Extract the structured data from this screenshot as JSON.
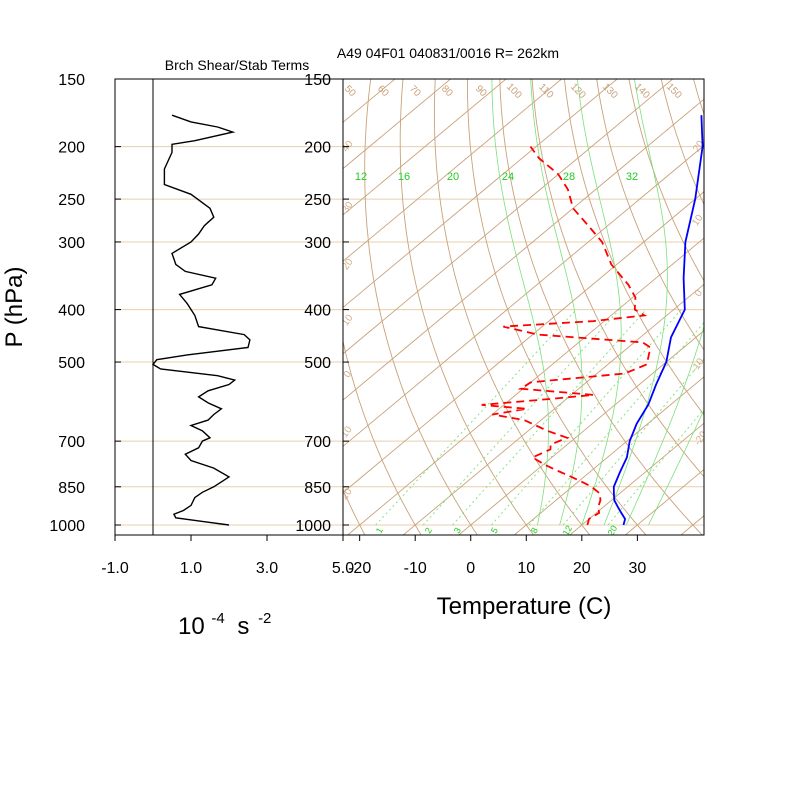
{
  "chart_data": [
    {
      "type": "line",
      "title": "Brch Shear/Stab Terms",
      "ylabel": "P (hPa)",
      "xlabel_base": "10",
      "xlabel_exp": "-4",
      "xlabel_unit": "s",
      "xlabel_unit_exp": "-2",
      "y_scale": "log-pressure",
      "ylim": [
        1000,
        150
      ],
      "xlim": [
        -1.0,
        5.0
      ],
      "x_ticks": [
        "-1.0",
        "1.0",
        "3.0",
        "5.0"
      ],
      "y_ticks": [
        "150",
        "200",
        "250",
        "300",
        "400",
        "500",
        "700",
        "850",
        "1000"
      ],
      "reference_line_x": 0,
      "line_color": "#000000",
      "series": [
        {
          "values": [
            [
              2.0,
              1000
            ],
            [
              1.3,
              985
            ],
            [
              0.6,
              970
            ],
            [
              0.55,
              955
            ],
            [
              0.8,
              940
            ],
            [
              1.0,
              920
            ],
            [
              1.1,
              890
            ],
            [
              1.3,
              870
            ],
            [
              1.6,
              850
            ],
            [
              2.0,
              815
            ],
            [
              1.6,
              785
            ],
            [
              1.0,
              760
            ],
            [
              0.85,
              740
            ],
            [
              1.2,
              720
            ],
            [
              1.3,
              700
            ],
            [
              1.5,
              690
            ],
            [
              1.3,
              670
            ],
            [
              1.0,
              655
            ],
            [
              1.45,
              640
            ],
            [
              1.6,
              625
            ],
            [
              1.8,
              610
            ],
            [
              1.45,
              595
            ],
            [
              1.2,
              580
            ],
            [
              1.45,
              565
            ],
            [
              2.0,
              550
            ],
            [
              2.15,
              540
            ],
            [
              1.7,
              530
            ],
            [
              0.2,
              515
            ],
            [
              0.0,
              505
            ],
            [
              0.1,
              495
            ],
            [
              0.9,
              485
            ],
            [
              2.5,
              470
            ],
            [
              2.55,
              455
            ],
            [
              2.4,
              445
            ],
            [
              1.2,
              430
            ],
            [
              1.1,
              410
            ],
            [
              0.9,
              390
            ],
            [
              0.7,
              375
            ],
            [
              1.55,
              360
            ],
            [
              1.65,
              350
            ],
            [
              0.85,
              340
            ],
            [
              0.6,
              330
            ],
            [
              0.5,
              315
            ],
            [
              1.0,
              300
            ],
            [
              1.2,
              290
            ],
            [
              1.35,
              280
            ],
            [
              1.6,
              270
            ],
            [
              1.5,
              260
            ],
            [
              1.0,
              245
            ],
            [
              0.3,
              235
            ],
            [
              0.3,
              220
            ],
            [
              0.5,
              205
            ],
            [
              0.5,
              198
            ],
            [
              1.1,
              195
            ],
            [
              2.1,
              188
            ],
            [
              1.7,
              184
            ],
            [
              1.0,
              180
            ],
            [
              0.5,
              175
            ]
          ]
        }
      ]
    },
    {
      "type": "line",
      "title": "A49 04F01 040831/0016 R= 262km",
      "xlabel": "Temperature (C)",
      "y_scale": "log-pressure",
      "ylim": [
        1000,
        150
      ],
      "xlim": [
        -23,
        42
      ],
      "skew": true,
      "x_ticks": [
        "-20",
        "-10",
        "0",
        "10",
        "20",
        "30"
      ],
      "y_ticks": [
        "150",
        "200",
        "250",
        "300",
        "400",
        "500",
        "700",
        "850",
        "1000"
      ],
      "isotherm_labels": [
        "-20",
        "-10",
        "0",
        "10",
        "20",
        "30",
        "40"
      ],
      "mixing_ratio_labels": [
        "1",
        "2",
        "3",
        "5",
        "8",
        "12",
        "20"
      ],
      "theta_e_labels": [
        "12",
        "16",
        "20",
        "24",
        "28",
        "32"
      ],
      "dry_adiabat_labels": [
        "50",
        "60",
        "70",
        "80",
        "90",
        "100",
        "110",
        "120",
        "130",
        "140",
        "150"
      ],
      "colors": {
        "background_lines": "#c9a27a",
        "isobars": "#e8cfae",
        "moist_lines": "#7be07b",
        "labels_green": "#22cc22",
        "temperature": "#0000ff",
        "dewpoint": "#ff0000"
      },
      "series": [
        {
          "name": "Temperature",
          "values": [
            [
              27.5,
              1000
            ],
            [
              26.5,
              975
            ],
            [
              24.5,
              950
            ],
            [
              22.5,
              925
            ],
            [
              20.5,
              900
            ],
            [
              19.0,
              875
            ],
            [
              17.5,
              850
            ],
            [
              15.5,
              800
            ],
            [
              13.5,
              750
            ],
            [
              10.5,
              700
            ],
            [
              8.0,
              650
            ],
            [
              6.0,
              600
            ],
            [
              3.0,
              550
            ],
            [
              0.0,
              500
            ],
            [
              -4.5,
              450
            ],
            [
              -8.0,
              400
            ],
            [
              -15.0,
              350
            ],
            [
              -22.5,
              300
            ],
            [
              -30.0,
              250
            ],
            [
              -40.0,
              200
            ],
            [
              -47.0,
              175
            ]
          ]
        },
        {
          "name": "Dewpoint",
          "values": [
            [
              21.0,
              1000
            ],
            [
              20.0,
              975
            ],
            [
              20.5,
              950
            ],
            [
              19.0,
              925
            ],
            [
              18.0,
              900
            ],
            [
              16.5,
              875
            ],
            [
              13.5,
              850
            ],
            [
              9.5,
              825
            ],
            [
              5.0,
              800
            ],
            [
              0.5,
              775
            ],
            [
              -3.5,
              750
            ],
            [
              -2.0,
              725
            ],
            [
              -3.0,
              710
            ],
            [
              -1.5,
              690
            ],
            [
              -6.5,
              670
            ],
            [
              -13.0,
              640
            ],
            [
              -20.0,
              625
            ],
            [
              -15.0,
              610
            ],
            [
              -24.0,
              600
            ],
            [
              -13.0,
              585
            ],
            [
              -6.0,
              575
            ],
            [
              -20.5,
              560
            ],
            [
              -20.0,
              545
            ],
            [
              -5.0,
              525
            ],
            [
              -3.0,
              505
            ],
            [
              -6.0,
              470
            ],
            [
              -8.5,
              460
            ],
            [
              -29.0,
              445
            ],
            [
              -37.0,
              430
            ],
            [
              -22.0,
              420
            ],
            [
              -14.0,
              410
            ],
            [
              -17.0,
              400
            ],
            [
              -19.5,
              380
            ],
            [
              -23.5,
              360
            ],
            [
              -31.0,
              330
            ],
            [
              -37.5,
              300
            ],
            [
              -43.5,
              280
            ],
            [
              -50.0,
              260
            ],
            [
              -55.0,
              240
            ],
            [
              -60.0,
              225
            ],
            [
              -67.0,
              210
            ],
            [
              -71.0,
              200
            ]
          ]
        }
      ]
    }
  ]
}
